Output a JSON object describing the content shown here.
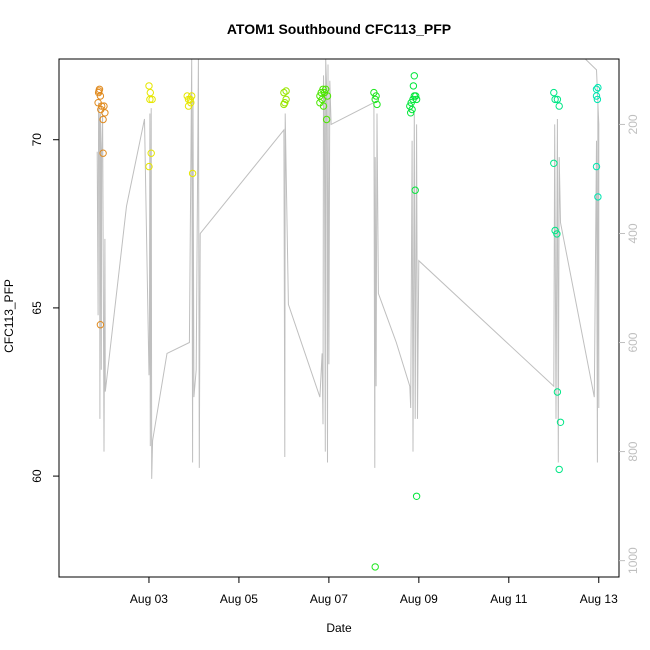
{
  "chart_data": {
    "type": "scatter",
    "title": "ATOM1 Southbound CFC113_PFP",
    "xlabel": "Date",
    "ylabel": "CFC113_PFP",
    "x_ticks": [
      {
        "label": "Aug 03",
        "value": 3
      },
      {
        "label": "Aug 05",
        "value": 5
      },
      {
        "label": "Aug 07",
        "value": 7
      },
      {
        "label": "Aug 09",
        "value": 9
      },
      {
        "label": "Aug 11",
        "value": 11
      },
      {
        "label": "Aug 13",
        "value": 13
      }
    ],
    "y_ticks": [
      60,
      65,
      70
    ],
    "y2_ticks": [
      200,
      400,
      600,
      800,
      1000
    ],
    "xlim": [
      1.0,
      13.45
    ],
    "ylim": [
      57.0,
      72.4
    ],
    "y2lim": [
      1030,
      80
    ],
    "grid": false,
    "series": [
      {
        "color": "#E08A1E",
        "points": [
          [
            1.88,
            71.4
          ],
          [
            1.9,
            71.5
          ],
          [
            1.92,
            71.3
          ],
          [
            1.87,
            71.1
          ],
          [
            1.93,
            70.9
          ],
          [
            1.95,
            71.0
          ],
          [
            2.0,
            71.0
          ],
          [
            1.98,
            70.6
          ],
          [
            2.02,
            70.8
          ],
          [
            1.98,
            69.6
          ],
          [
            1.92,
            64.5
          ],
          [
            1.89,
            71.45
          ]
        ]
      },
      {
        "color": "#E6E600",
        "points": [
          [
            3.0,
            71.6
          ],
          [
            3.03,
            71.4
          ],
          [
            3.02,
            71.2
          ],
          [
            3.07,
            71.2
          ],
          [
            3.05,
            69.6
          ],
          [
            3.0,
            69.2
          ],
          [
            3.85,
            71.3
          ],
          [
            3.88,
            71.2
          ],
          [
            3.92,
            71.2
          ],
          [
            3.95,
            71.3
          ],
          [
            3.88,
            71.0
          ],
          [
            3.93,
            71.1
          ],
          [
            3.97,
            69.0
          ]
        ]
      },
      {
        "color": "#99E600",
        "points": [
          [
            6.0,
            71.4
          ],
          [
            6.05,
            71.45
          ],
          [
            6.02,
            71.1
          ],
          [
            6.05,
            71.2
          ],
          [
            6.0,
            71.05
          ]
        ]
      },
      {
        "color": "#4CE600",
        "points": [
          [
            6.8,
            71.3
          ],
          [
            6.83,
            71.4
          ],
          [
            6.87,
            71.5
          ],
          [
            6.9,
            71.4
          ],
          [
            6.93,
            71.5
          ],
          [
            6.97,
            71.3
          ],
          [
            6.8,
            71.1
          ],
          [
            6.88,
            71.0
          ],
          [
            6.95,
            70.6
          ],
          [
            6.85,
            71.2
          ]
        ]
      },
      {
        "color": "#1FE61F",
        "points": [
          [
            8.0,
            71.4
          ],
          [
            8.05,
            71.3
          ],
          [
            8.03,
            71.2
          ],
          [
            8.07,
            71.05
          ],
          [
            8.03,
            57.3
          ]
        ]
      },
      {
        "color": "#00E639",
        "points": [
          [
            8.8,
            71.0
          ],
          [
            8.83,
            71.1
          ],
          [
            8.85,
            70.9
          ],
          [
            8.87,
            71.2
          ],
          [
            8.9,
            71.3
          ],
          [
            8.93,
            71.3
          ],
          [
            8.95,
            71.2
          ],
          [
            8.9,
            71.9
          ],
          [
            8.88,
            71.6
          ],
          [
            8.92,
            68.5
          ],
          [
            8.95,
            59.4
          ],
          [
            8.82,
            70.8
          ]
        ]
      },
      {
        "color": "#00E686",
        "points": [
          [
            12.0,
            71.4
          ],
          [
            12.03,
            71.2
          ],
          [
            12.08,
            71.2
          ],
          [
            12.12,
            71.0
          ],
          [
            12.0,
            69.3
          ],
          [
            12.03,
            67.3
          ],
          [
            12.07,
            67.2
          ],
          [
            12.08,
            62.5
          ],
          [
            12.12,
            60.2
          ],
          [
            12.15,
            61.6
          ]
        ]
      },
      {
        "color": "#00E6B0",
        "points": [
          [
            12.95,
            71.5
          ],
          [
            12.98,
            71.55
          ],
          [
            12.97,
            71.2
          ],
          [
            12.95,
            71.3
          ],
          [
            12.95,
            69.2
          ],
          [
            12.98,
            68.3
          ]
        ]
      }
    ],
    "altitude_trace": {
      "color": "#bfbfbf",
      "points": [
        [
          1.85,
          250
        ],
        [
          1.87,
          550
        ],
        [
          1.88,
          160
        ],
        [
          1.9,
          200
        ],
        [
          1.91,
          740
        ],
        [
          1.92,
          180
        ],
        [
          1.93,
          260
        ],
        [
          1.94,
          650
        ],
        [
          1.95,
          250
        ],
        [
          1.97,
          180
        ],
        [
          2.0,
          800
        ],
        [
          2.02,
          410
        ],
        [
          2.03,
          690
        ],
        [
          2.5,
          350
        ],
        [
          2.9,
          190
        ],
        [
          3.0,
          660
        ],
        [
          3.01,
          620
        ],
        [
          3.02,
          180
        ],
        [
          3.03,
          790
        ],
        [
          3.05,
          170
        ],
        [
          3.06,
          850
        ],
        [
          3.08,
          780
        ],
        [
          3.4,
          620
        ],
        [
          3.9,
          600
        ],
        [
          3.95,
          80
        ],
        [
          3.97,
          820
        ],
        [
          3.98,
          150
        ],
        [
          4.0,
          700
        ],
        [
          4.05,
          650
        ],
        [
          4.1,
          80
        ],
        [
          4.12,
          830
        ],
        [
          4.14,
          400
        ],
        [
          6.0,
          210
        ],
        [
          6.02,
          810
        ],
        [
          6.03,
          180
        ],
        [
          6.1,
          530
        ],
        [
          6.8,
          700
        ],
        [
          6.85,
          620
        ],
        [
          6.87,
          750
        ],
        [
          6.88,
          110
        ],
        [
          6.9,
          190
        ],
        [
          6.92,
          800
        ],
        [
          6.93,
          80
        ],
        [
          6.95,
          130
        ],
        [
          6.97,
          820
        ],
        [
          6.98,
          90
        ],
        [
          7.0,
          640
        ],
        [
          7.02,
          120
        ],
        [
          7.05,
          200
        ],
        [
          8.0,
          160
        ],
        [
          8.02,
          830
        ],
        [
          8.03,
          260
        ],
        [
          8.05,
          680
        ],
        [
          8.07,
          180
        ],
        [
          8.1,
          510
        ],
        [
          8.5,
          600
        ],
        [
          8.8,
          680
        ],
        [
          8.82,
          720
        ],
        [
          8.85,
          230
        ],
        [
          8.87,
          800
        ],
        [
          8.9,
          180
        ],
        [
          8.92,
          740
        ],
        [
          8.95,
          200
        ],
        [
          8.97,
          740
        ],
        [
          9.0,
          450
        ],
        [
          12.0,
          680
        ],
        [
          12.02,
          200
        ],
        [
          12.05,
          740
        ],
        [
          12.08,
          190
        ],
        [
          12.1,
          820
        ],
        [
          12.12,
          260
        ],
        [
          12.15,
          380
        ],
        [
          12.9,
          700
        ],
        [
          12.95,
          230
        ],
        [
          12.97,
          820
        ],
        [
          12.98,
          160
        ],
        [
          13.0,
          720
        ],
        [
          13.0,
          200
        ],
        [
          12.95,
          100
        ],
        [
          12.7,
          80
        ]
      ]
    }
  }
}
